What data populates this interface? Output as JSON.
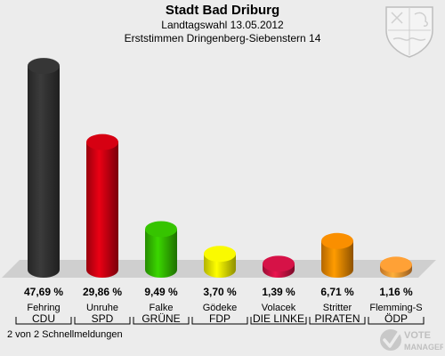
{
  "header": {
    "title": "Stadt Bad Driburg",
    "date_line": "Landtagswahl 13.05.2012",
    "district_line": "Erststimmen Dringenberg-Siebenstern 14"
  },
  "footer": {
    "report_status": "2 von 2 Schnellmeldungen"
  },
  "logo": {
    "line1": "VOTE",
    "line2": "MANAGER"
  },
  "chart_data": {
    "type": "bar",
    "title": "Stadt Bad Driburg",
    "subtitle": "Landtagswahl 13.05.2012 / Erststimmen Dringenberg-Siebenstern 14",
    "categories": [
      "CDU",
      "SPD",
      "GRÜNE",
      "FDP",
      "DIE LINKE",
      "PIRATEN",
      "ÖDP"
    ],
    "candidates": [
      "Fehring",
      "Unruhe",
      "Falke",
      "Gödeke",
      "Volacek",
      "Stritter",
      "Flemming-S"
    ],
    "value_labels": [
      "47,69 %",
      "29,86 %",
      "9,49 %",
      "3,70 %",
      "1,39 %",
      "6,71 %",
      "1,16 %"
    ],
    "values": [
      47.69,
      29.86,
      9.49,
      3.7,
      1.39,
      6.71,
      1.16
    ],
    "unit": "%",
    "colors": [
      "#333333",
      "#cc0011",
      "#33bb00",
      "#eeee00",
      "#cc1144",
      "#ee8800",
      "#ff9933"
    ],
    "ylim": [
      0,
      50
    ],
    "grid": false,
    "legend": "none"
  }
}
